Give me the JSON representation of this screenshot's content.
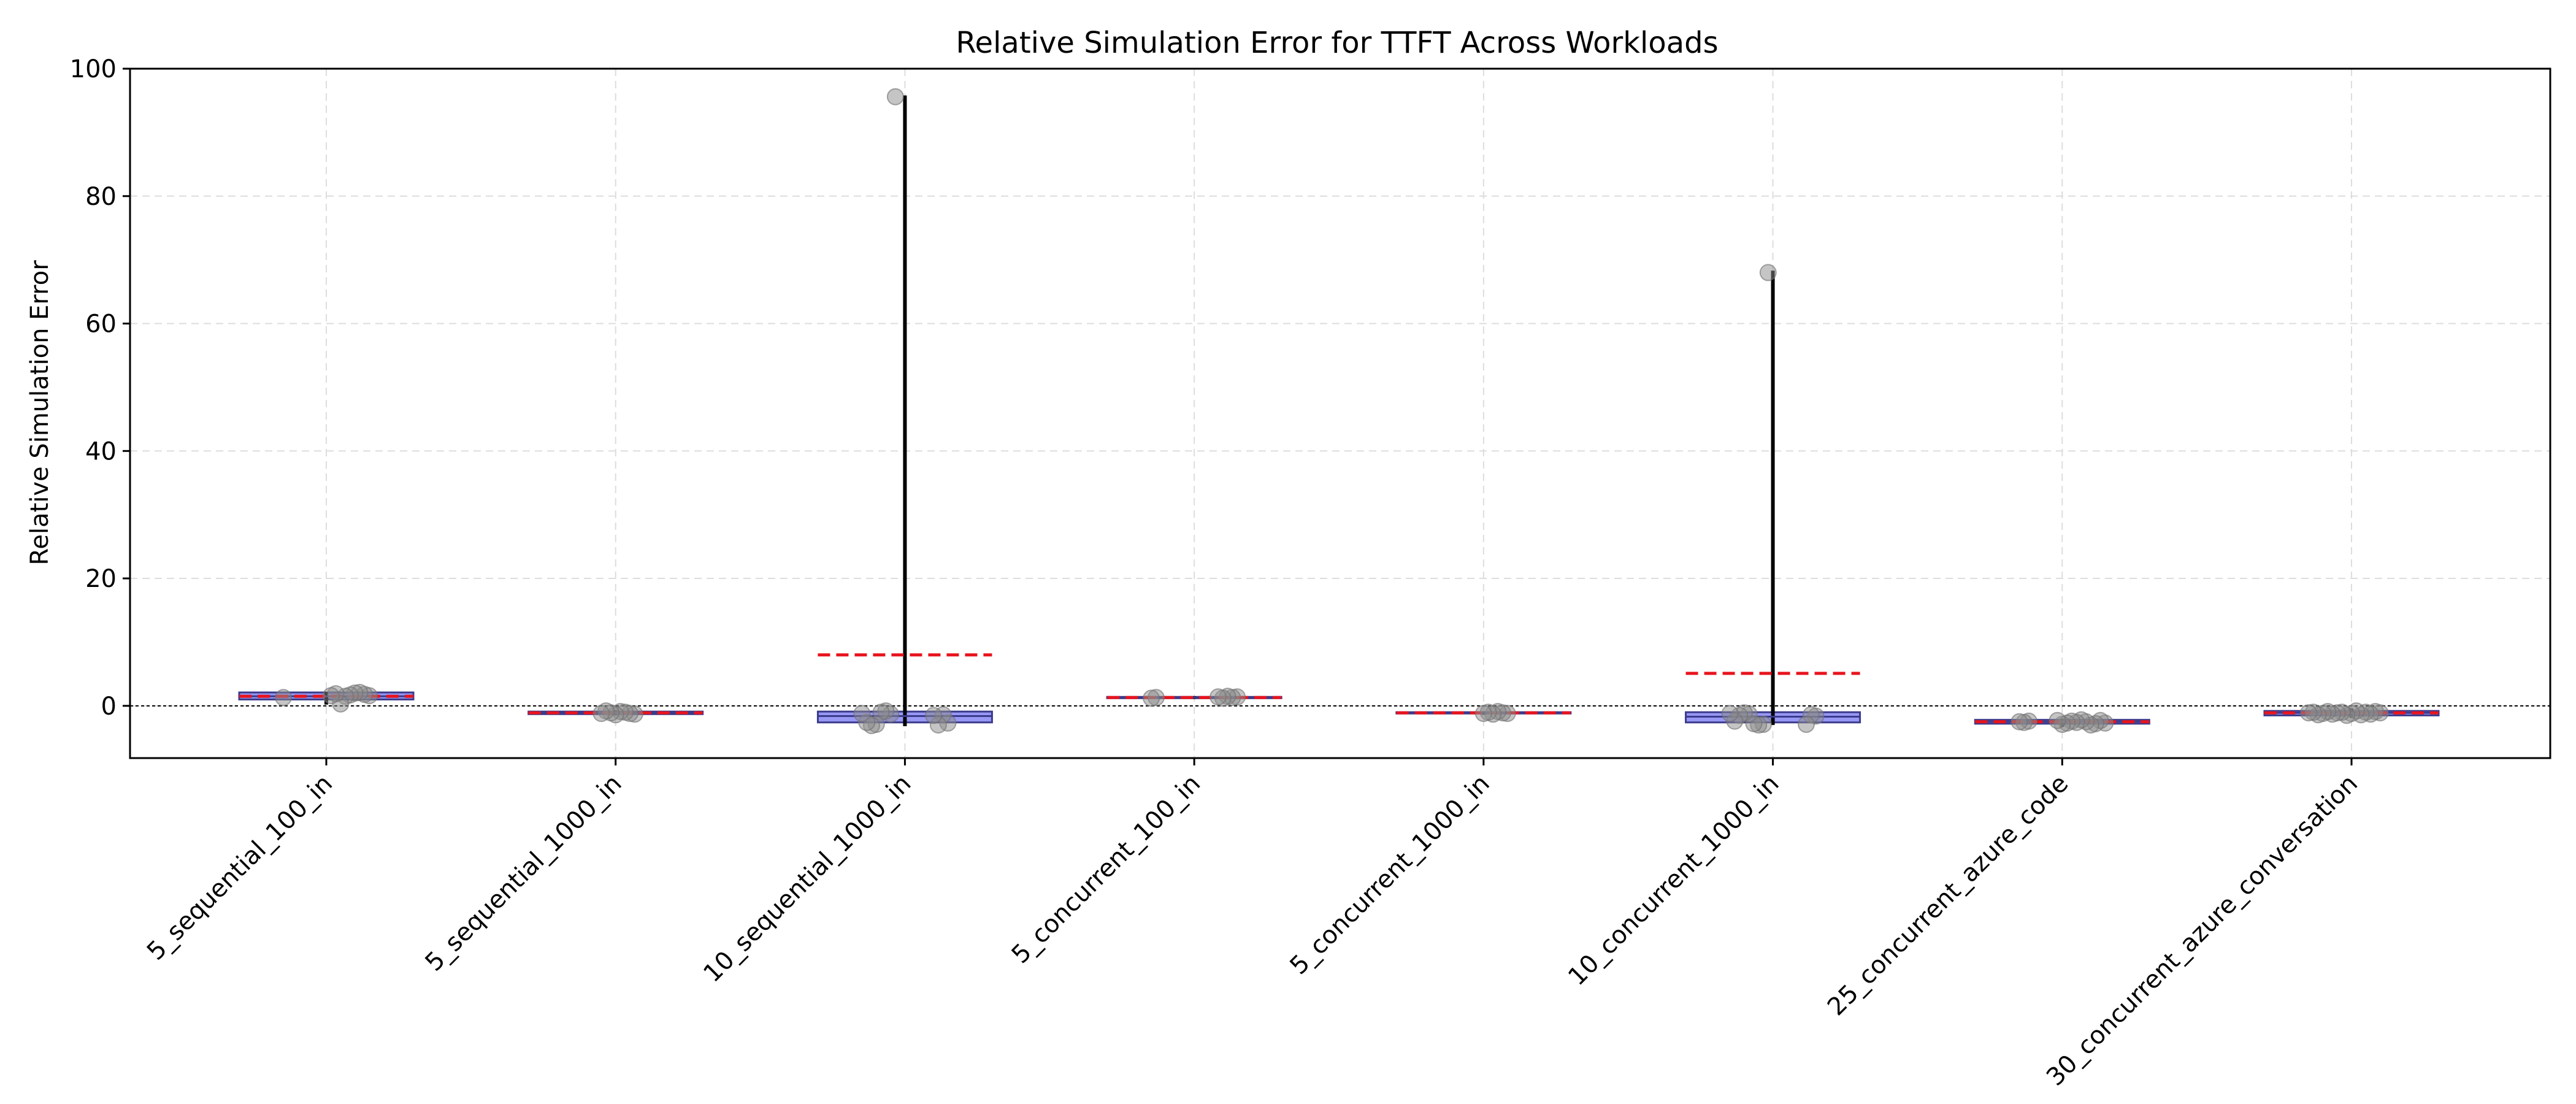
{
  "chart_data": {
    "type": "box",
    "title": "Relative Simulation Error for TTFT Across Workloads",
    "xlabel": "",
    "ylabel": "Relative Simulation Error",
    "ylim": [
      -8.2,
      100
    ],
    "yticks": [
      0,
      20,
      40,
      60,
      80,
      100
    ],
    "grid": true,
    "reference_line_y": 0,
    "colors": {
      "box_fill": "#6f6ff0",
      "box_edge": "#3b3b8c",
      "whisker": "#000000",
      "mean_line": "#e8141e",
      "point": "#8c8c8c",
      "grid": "#dddddd",
      "reference_line": "#000000"
    },
    "categories": [
      "5_sequential_100_in",
      "5_sequential_1000_in",
      "10_sequential_1000_in",
      "5_concurrent_100_in",
      "5_concurrent_1000_in",
      "10_concurrent_1000_in",
      "25_concurrent_azure_code",
      "30_concurrent_azure_conversation"
    ],
    "boxes": [
      {
        "q1": 1.0,
        "median": 1.5,
        "q3": 2.1,
        "whisker_low": 0.2,
        "whisker_high": 2.2,
        "mean": 1.5,
        "points": [
          1.3,
          1.6,
          1.8,
          2.1,
          2.0,
          1.7,
          1.5,
          0.3,
          1.9,
          1.6
        ]
      },
      {
        "q1": -1.3,
        "median": -1.1,
        "q3": -0.9,
        "whisker_low": -1.5,
        "whisker_high": -0.7,
        "mean": -1.1,
        "points": [
          -1.3,
          -1.2,
          -1.0,
          -0.9,
          -1.4,
          -1.1,
          -0.8,
          -1.2
        ]
      },
      {
        "q1": -2.6,
        "median": -1.6,
        "q3": -0.9,
        "whisker_low": -3.2,
        "whisker_high": 95.8,
        "mean": 8.0,
        "points": [
          95.6,
          -1.3,
          -0.8,
          -1.0,
          -2.9,
          -3.1,
          -2.6,
          -1.2,
          -2.7,
          -1.4,
          -3.0,
          -1.5
        ]
      },
      {
        "q1": 1.2,
        "median": 1.3,
        "q3": 1.4,
        "whisker_low": 1.1,
        "whisker_high": 1.5,
        "mean": 1.3,
        "points": [
          1.3,
          1.2,
          1.4,
          1.3,
          1.5,
          1.2,
          1.4
        ]
      },
      {
        "q1": -1.2,
        "median": -1.1,
        "q3": -1.0,
        "whisker_low": -1.4,
        "whisker_high": -0.9,
        "mean": -1.1,
        "points": [
          -1.2,
          -1.1,
          -0.9,
          -1.3,
          -1.0,
          -1.2
        ]
      },
      {
        "q1": -2.6,
        "median": -1.7,
        "q3": -1.0,
        "whisker_low": -3.0,
        "whisker_high": 68.3,
        "mean": 5.1,
        "points": [
          68.0,
          -2.9,
          -3.0,
          -2.8,
          -1.3,
          -1.1,
          -1.5,
          -2.4,
          -1.2,
          -1.6,
          -1.4,
          -2.9
        ]
      },
      {
        "q1": -2.8,
        "median": -2.5,
        "q3": -2.2,
        "whisker_low": -3.3,
        "whisker_high": -2.0,
        "mean": -2.5,
        "points": [
          -2.4,
          -2.6,
          -2.5,
          -2.7,
          -2.3,
          -2.8,
          -3.0,
          -2.5,
          -2.2,
          -2.6,
          -2.4,
          -2.7,
          -2.9,
          -2.3
        ]
      },
      {
        "q1": -1.5,
        "median": -1.1,
        "q3": -0.8,
        "whisker_low": -1.9,
        "whisker_high": -0.4,
        "mean": -1.1,
        "points": [
          -1.1,
          -0.9,
          -1.3,
          -1.0,
          -1.4,
          -0.8,
          -1.2,
          -1.5,
          -1.0,
          -1.1,
          -1.3,
          -0.9,
          -1.2,
          -1.4,
          -1.0,
          -1.1
        ]
      }
    ]
  }
}
